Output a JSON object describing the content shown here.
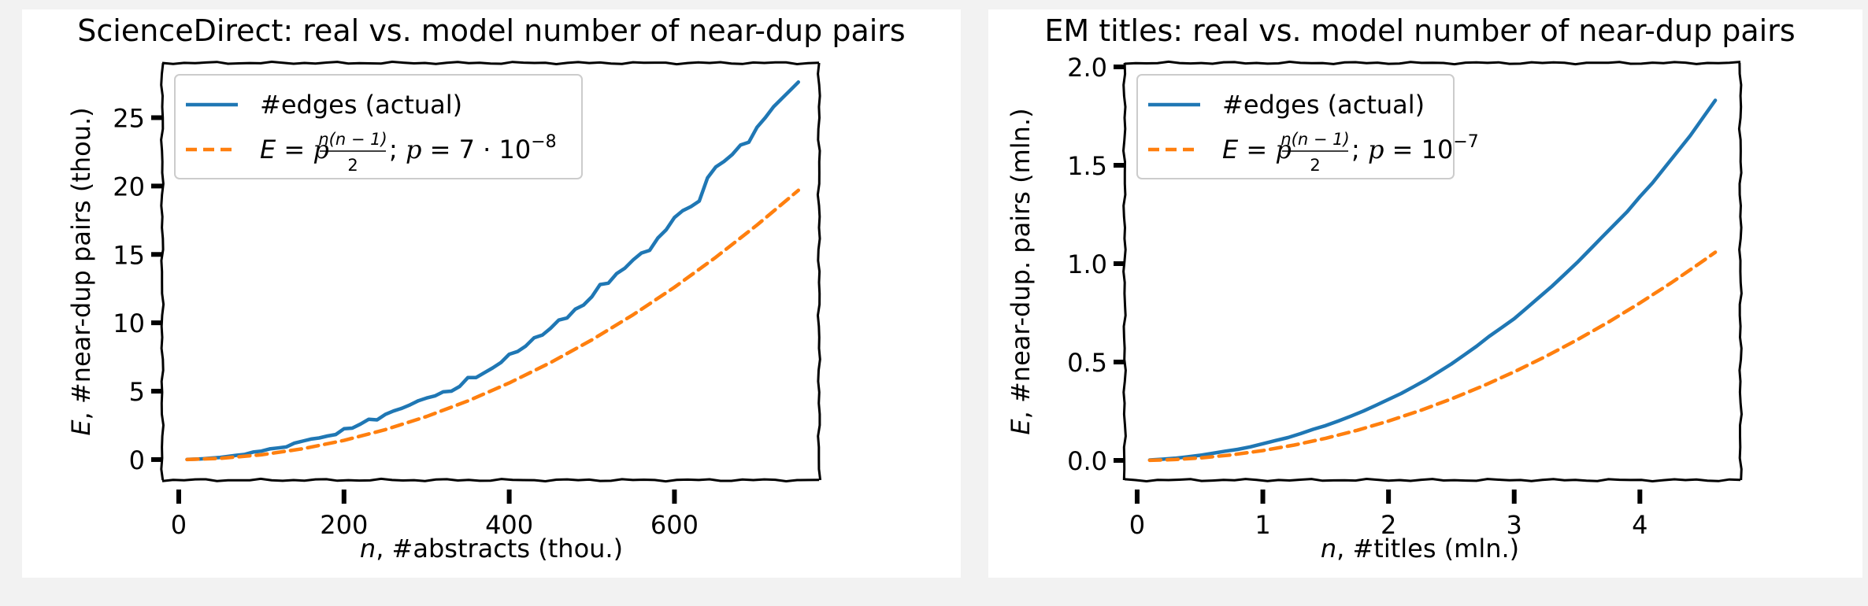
{
  "chart_data": [
    {
      "type": "line",
      "title": "ScienceDirect: real vs. model number of near-dup pairs",
      "xlabel_var": "n",
      "xlabel_rest": ", #abstracts (thou.)",
      "ylabel_var": "E",
      "ylabel_rest": ", #near-dup pairs (thou.)",
      "xlim": [
        -20,
        775
      ],
      "ylim": [
        -1.5,
        29
      ],
      "xticks": [
        0,
        200,
        400,
        600
      ],
      "xtick_labels": [
        "0",
        "200",
        "400",
        "600"
      ],
      "yticks": [
        0,
        5,
        10,
        15,
        20,
        25
      ],
      "ytick_labels": [
        "0",
        "5",
        "10",
        "15",
        "20",
        "25"
      ],
      "grid": false,
      "legend_position": "top-left",
      "legend": {
        "actual_label": "#edges (actual)",
        "model_lhs": "E = ",
        "model_sym": "p",
        "model_frac_num": "n(n − 1)",
        "model_frac_den": "2",
        "model_mid": "; ",
        "model_rhs": " = 7 · 10",
        "model_exp": "−8"
      },
      "series": [
        {
          "name": "#edges (actual)",
          "color": "#1f77b4",
          "style": "solid",
          "x": [
            10,
            20,
            30,
            40,
            50,
            60,
            70,
            80,
            90,
            100,
            110,
            120,
            130,
            140,
            150,
            160,
            170,
            180,
            190,
            200,
            210,
            220,
            230,
            240,
            250,
            260,
            270,
            280,
            290,
            300,
            310,
            320,
            330,
            340,
            350,
            360,
            370,
            380,
            390,
            400,
            410,
            420,
            430,
            440,
            450,
            460,
            470,
            480,
            490,
            500,
            510,
            520,
            530,
            540,
            550,
            560,
            570,
            580,
            590,
            600,
            610,
            620,
            630,
            640,
            650,
            660,
            670,
            680,
            690,
            700,
            710,
            720,
            730,
            740,
            750
          ],
          "y": [
            0.01,
            0.03,
            0.06,
            0.11,
            0.16,
            0.23,
            0.31,
            0.38,
            0.55,
            0.62,
            0.78,
            0.85,
            0.92,
            1.2,
            1.35,
            1.5,
            1.58,
            1.72,
            1.83,
            2.25,
            2.3,
            2.6,
            2.95,
            2.9,
            3.3,
            3.55,
            3.75,
            4.0,
            4.3,
            4.5,
            4.65,
            4.95,
            5.0,
            5.35,
            6.0,
            6.0,
            6.35,
            6.7,
            7.1,
            7.7,
            7.9,
            8.3,
            8.9,
            9.1,
            9.6,
            10.2,
            10.35,
            11.0,
            11.3,
            11.9,
            12.8,
            12.9,
            13.6,
            14.0,
            14.6,
            15.1,
            15.3,
            16.2,
            16.8,
            17.7,
            18.2,
            18.5,
            18.9,
            20.6,
            21.4,
            21.8,
            22.3,
            23.0,
            23.2,
            24.3,
            25.0,
            25.8,
            26.4,
            27.0,
            27.6
          ]
        },
        {
          "name": "E = p n(n-1)/2; p = 7·10^-8",
          "color": "#ff7f0e",
          "style": "dashed",
          "x": [
            10,
            50,
            100,
            150,
            200,
            250,
            300,
            350,
            400,
            450,
            500,
            550,
            600,
            650,
            700,
            750
          ],
          "y": [
            0.0035,
            0.0875,
            0.35,
            0.79,
            1.4,
            2.19,
            3.15,
            4.29,
            5.6,
            7.09,
            8.75,
            10.59,
            12.6,
            14.79,
            17.15,
            19.69
          ]
        }
      ]
    },
    {
      "type": "line",
      "title": "EM titles: real vs. model number of near-dup pairs",
      "xlabel_var": "n",
      "xlabel_rest": ", #titles (mln.)",
      "ylabel_var": "E",
      "ylabel_rest": ", #near-dup. pairs (mln.)",
      "xlim": [
        -0.1,
        4.8
      ],
      "ylim": [
        -0.1,
        2.02
      ],
      "xticks": [
        0,
        1,
        2,
        3,
        4
      ],
      "xtick_labels": [
        "0",
        "1",
        "2",
        "3",
        "4"
      ],
      "yticks": [
        0,
        0.5,
        1.0,
        1.5,
        2.0
      ],
      "ytick_labels": [
        "0.0",
        "0.5",
        "1.0",
        "1.5",
        "2.0"
      ],
      "grid": false,
      "legend_position": "top-left",
      "legend": {
        "actual_label": "#edges (actual)",
        "model_lhs": "E = ",
        "model_sym": "p",
        "model_frac_num": "n(n − 1)",
        "model_frac_den": "2",
        "model_mid": "; ",
        "model_rhs": " = 10",
        "model_exp": "−7"
      },
      "series": [
        {
          "name": "#edges (actual)",
          "color": "#1f77b4",
          "style": "solid",
          "x": [
            0.1,
            0.2,
            0.3,
            0.4,
            0.5,
            0.6,
            0.7,
            0.8,
            0.9,
            1.0,
            1.1,
            1.2,
            1.3,
            1.4,
            1.5,
            1.6,
            1.7,
            1.8,
            1.9,
            2.0,
            2.1,
            2.2,
            2.3,
            2.4,
            2.5,
            2.6,
            2.7,
            2.8,
            2.9,
            3.0,
            3.1,
            3.2,
            3.3,
            3.4,
            3.5,
            3.6,
            3.7,
            3.8,
            3.9,
            4.0,
            4.1,
            4.2,
            4.3,
            4.4,
            4.5,
            4.6
          ],
          "y": [
            0.002,
            0.006,
            0.011,
            0.018,
            0.026,
            0.036,
            0.047,
            0.056,
            0.069,
            0.085,
            0.101,
            0.116,
            0.136,
            0.158,
            0.177,
            0.2,
            0.225,
            0.251,
            0.28,
            0.31,
            0.34,
            0.375,
            0.41,
            0.45,
            0.49,
            0.535,
            0.58,
            0.63,
            0.675,
            0.72,
            0.775,
            0.83,
            0.885,
            0.945,
            1.005,
            1.07,
            1.135,
            1.2,
            1.265,
            1.34,
            1.41,
            1.49,
            1.57,
            1.65,
            1.74,
            1.83
          ]
        },
        {
          "name": "E = p n(n-1)/2; p = 10^-7",
          "color": "#ff7f0e",
          "style": "dashed",
          "x": [
            0.1,
            0.3,
            0.5,
            0.75,
            1.0,
            1.25,
            1.5,
            1.75,
            2.0,
            2.25,
            2.5,
            2.75,
            3.0,
            3.25,
            3.5,
            3.75,
            4.0,
            4.25,
            4.5,
            4.6
          ],
          "y": [
            0.0005,
            0.0045,
            0.0125,
            0.028,
            0.05,
            0.078,
            0.1125,
            0.153,
            0.2,
            0.253,
            0.3125,
            0.378,
            0.45,
            0.528,
            0.6125,
            0.703,
            0.8,
            0.903,
            1.0125,
            1.058
          ]
        }
      ]
    }
  ]
}
